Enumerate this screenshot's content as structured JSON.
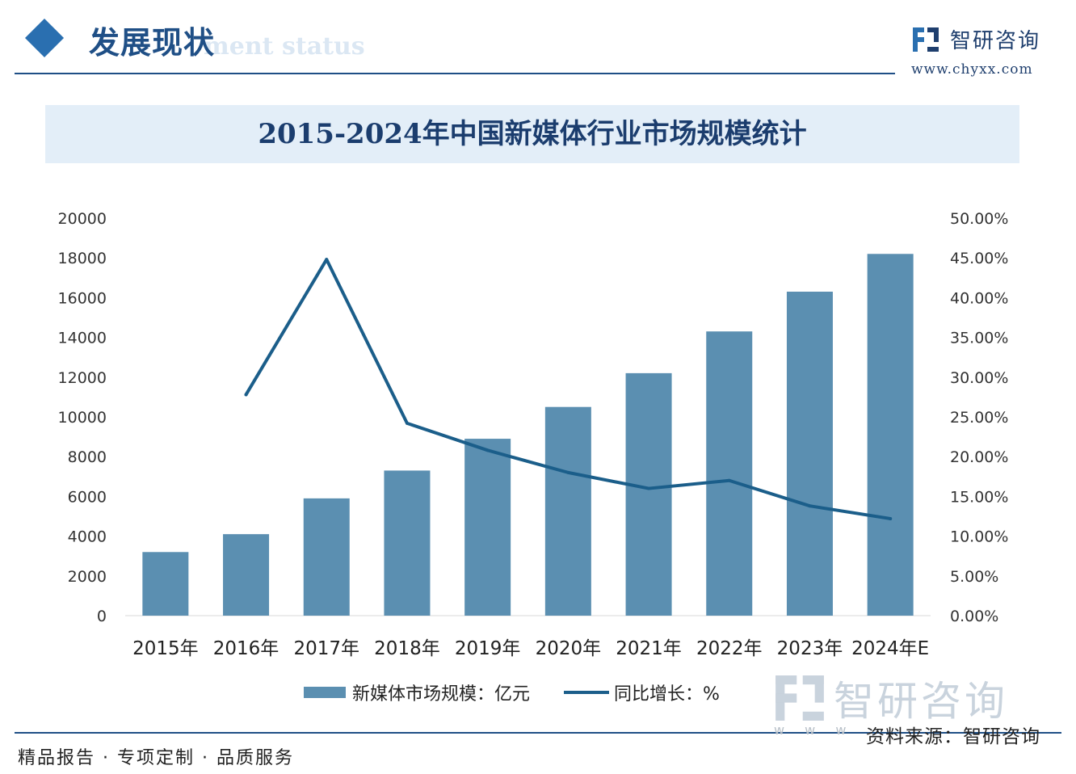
{
  "header": {
    "section_title": "发展现状",
    "section_subtitle": "ment status",
    "brand_name": "智研咨询",
    "brand_url": "www.chyxx.com"
  },
  "chart_data": {
    "type": "bar",
    "title": "2015-2024年中国新媒体行业市场规模统计",
    "categories": [
      "2015年",
      "2016年",
      "2017年",
      "2018年",
      "2019年",
      "2020年",
      "2021年",
      "2022年",
      "2023年",
      "2024年E"
    ],
    "series": [
      {
        "name": "新媒体市场规模：亿元",
        "type": "bar",
        "axis": "left",
        "values": [
          3200,
          4100,
          5900,
          7300,
          8900,
          10500,
          12200,
          14300,
          16300,
          18200
        ]
      },
      {
        "name": "同比增长：%",
        "type": "line",
        "axis": "right",
        "values": [
          null,
          27.8,
          44.8,
          24.2,
          20.8,
          18.0,
          16.0,
          17.0,
          13.8,
          12.2
        ]
      }
    ],
    "y_left": {
      "min": 0,
      "max": 20000,
      "ticks": [
        "0",
        "2000",
        "4000",
        "6000",
        "8000",
        "10000",
        "12000",
        "14000",
        "16000",
        "18000",
        "20000"
      ]
    },
    "y_right": {
      "min": 0,
      "max": 50,
      "ticks": [
        "0.00%",
        "5.00%",
        "10.00%",
        "15.00%",
        "20.00%",
        "25.00%",
        "30.00%",
        "35.00%",
        "40.00%",
        "45.00%",
        "50.00%"
      ]
    },
    "grid": false,
    "legend_position": "bottom",
    "colors": {
      "bar": "#5b8fb1",
      "line": "#1b5e8a"
    }
  },
  "footer": {
    "left": "精品报告 · 专项定制 · 品质服务",
    "www": "w w w .",
    "source": "资料来源：智研咨询",
    "watermark": "智研咨询"
  }
}
